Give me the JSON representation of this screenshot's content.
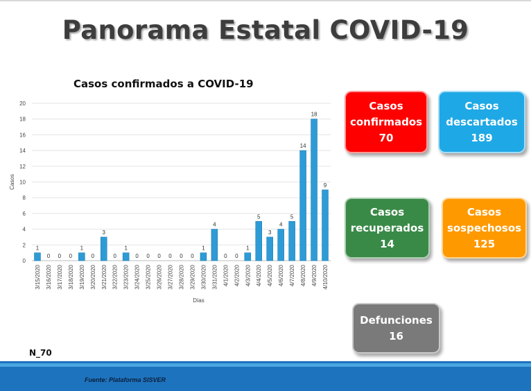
{
  "page_title": "Panorama Estatal COVID-19",
  "chart_data": {
    "type": "bar",
    "title": "Casos confirmados a COVID-19",
    "xlabel": "Días",
    "ylabel": "Casos",
    "ylim": [
      0,
      20
    ],
    "yticks": [
      0,
      2,
      4,
      6,
      8,
      10,
      12,
      14,
      16,
      18,
      20
    ],
    "bar_color": "#2e9bd6",
    "grid": true,
    "categories": [
      "3/15/2020",
      "3/16/2020",
      "3/17/2020",
      "3/18/2020",
      "3/19/2020",
      "3/20/2020",
      "3/21/2020",
      "3/22/2020",
      "3/23/2020",
      "3/24/2020",
      "3/25/2020",
      "3/26/2020",
      "3/27/2020",
      "3/28/2020",
      "3/29/2020",
      "3/30/2020",
      "3/31/2020",
      "4/1/2020",
      "4/2/2020",
      "4/3/2020",
      "4/4/2020",
      "4/5/2020",
      "4/6/2020",
      "4/7/2020",
      "4/8/2020",
      "4/9/2020",
      "4/10/2020"
    ],
    "values": [
      1,
      0,
      0,
      0,
      1,
      0,
      3,
      0,
      1,
      0,
      0,
      0,
      0,
      0,
      0,
      1,
      4,
      0,
      0,
      1,
      5,
      3,
      4,
      5,
      14,
      18,
      9
    ]
  },
  "cards": [
    {
      "lines": [
        "Casos",
        "confirmados",
        "70"
      ],
      "color": "#ff0000"
    },
    {
      "lines": [
        "Casos",
        "descartados",
        "189"
      ],
      "color": "#1fa8e6"
    },
    {
      "lines": [
        "Casos",
        "recuperados",
        "14"
      ],
      "color": "#3a8a47"
    },
    {
      "lines": [
        "Casos",
        "sospechosos",
        "125"
      ],
      "color": "#ff9900"
    },
    {
      "lines": [
        "Defunciones",
        "16"
      ],
      "color": "#7a7a7a"
    }
  ],
  "n_label": "N_70",
  "source": "Fuente: Plataforma SISVER"
}
